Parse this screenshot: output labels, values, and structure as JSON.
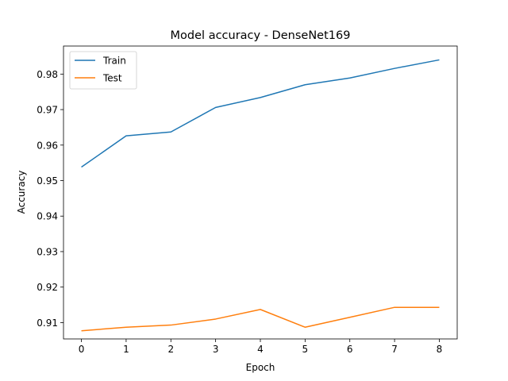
{
  "chart_data": {
    "type": "line",
    "title": "Model accuracy - DenseNet169",
    "xlabel": "Epoch",
    "ylabel": "Accuracy",
    "x": [
      0,
      1,
      2,
      3,
      4,
      5,
      6,
      7,
      8
    ],
    "xticks": [
      "0",
      "1",
      "2",
      "3",
      "4",
      "5",
      "6",
      "7",
      "8"
    ],
    "xlim": [
      -0.4,
      8.4
    ],
    "yticks": [
      "0.91",
      "0.92",
      "0.93",
      "0.94",
      "0.95",
      "0.96",
      "0.97",
      "0.98"
    ],
    "yticks_values": [
      0.91,
      0.92,
      0.93,
      0.94,
      0.95,
      0.96,
      0.97,
      0.98
    ],
    "ylim": [
      0.9054,
      0.9879
    ],
    "grid": false,
    "legend_position": "top-left",
    "series": [
      {
        "name": "Train",
        "color": "#1f77b4",
        "values": [
          0.9538,
          0.9626,
          0.9637,
          0.9706,
          0.9734,
          0.977,
          0.9789,
          0.9816,
          0.984
        ]
      },
      {
        "name": "Test",
        "color": "#ff7f0e",
        "values": [
          0.9077,
          0.9087,
          0.9093,
          0.911,
          0.9137,
          0.9087,
          0.9115,
          0.9143,
          0.9143
        ]
      }
    ]
  }
}
